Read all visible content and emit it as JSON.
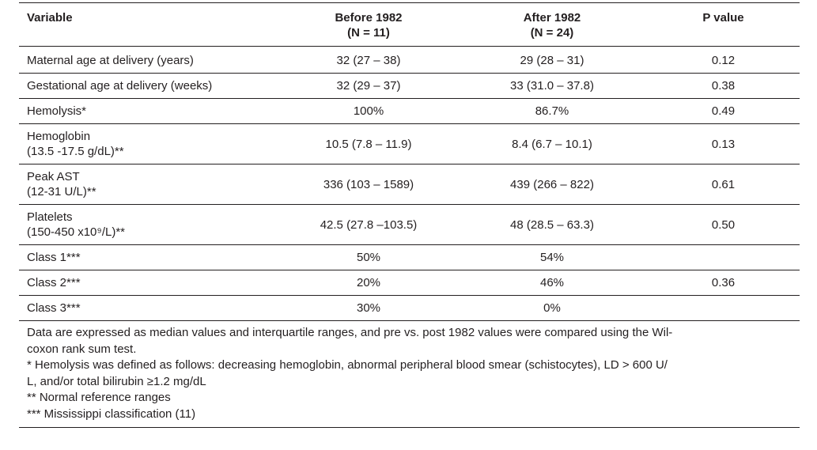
{
  "table": {
    "headers": {
      "variable": "Variable",
      "before_line1": "Before 1982",
      "before_line2": "(N = 11)",
      "after_line1": "After 1982",
      "after_line2": "(N = 24)",
      "pvalue": "P value"
    },
    "rows": [
      {
        "label": "Maternal age at delivery (years)",
        "before": "32 (27 – 38)",
        "after": "29 (28 – 31)",
        "p": "0.12"
      },
      {
        "label": "Gestational age at delivery (weeks)",
        "before": "32 (29 – 37)",
        "after": "33 (31.0 – 37.8)",
        "p": "0.38"
      },
      {
        "label": "Hemolysis*",
        "before": "100%",
        "after": "86.7%",
        "p": "0.49"
      },
      {
        "label": "Hemoglobin",
        "sublabel": "(13.5 -17.5 g/dL)**",
        "before": "10.5 (7.8 – 11.9)",
        "after": "8.4 (6.7 – 10.1)",
        "p": "0.13"
      },
      {
        "label": "Peak AST",
        "sublabel": "(12-31 U/L)**",
        "before": "336 (103 – 1589)",
        "after": "439 (266 – 822)",
        "p": "0.61"
      },
      {
        "label": "Platelets",
        "sublabel": "(150-450 x10⁹/L)**",
        "before": "42.5 (27.8 –103.5)",
        "after": "48 (28.5 – 63.3)",
        "p": "0.50"
      },
      {
        "label": "Class 1***",
        "before": "50%",
        "after": "54%",
        "p": ""
      },
      {
        "label": "Class 2***",
        "before": "20%",
        "after": "46%",
        "p": "0.36"
      },
      {
        "label": "Class 3***",
        "before": "30%",
        "after": "0%",
        "p": ""
      }
    ],
    "footnotes": {
      "data_line1": "Data are expressed as median values and interquartile ranges, and pre vs. post 1982 values were compared using the Wil-",
      "data_line2": "coxon rank sum test.",
      "hemolysis_line1": "* Hemolysis was defined as follows: decreasing hemoglobin, abnormal peripheral blood smear (schistocytes), LD > 600 U/",
      "hemolysis_line2": "L, and/or total bilirubin ≥1.2 mg/dL",
      "reference": "** Normal reference ranges",
      "mississippi": "*** Mississippi classification (11)"
    }
  }
}
